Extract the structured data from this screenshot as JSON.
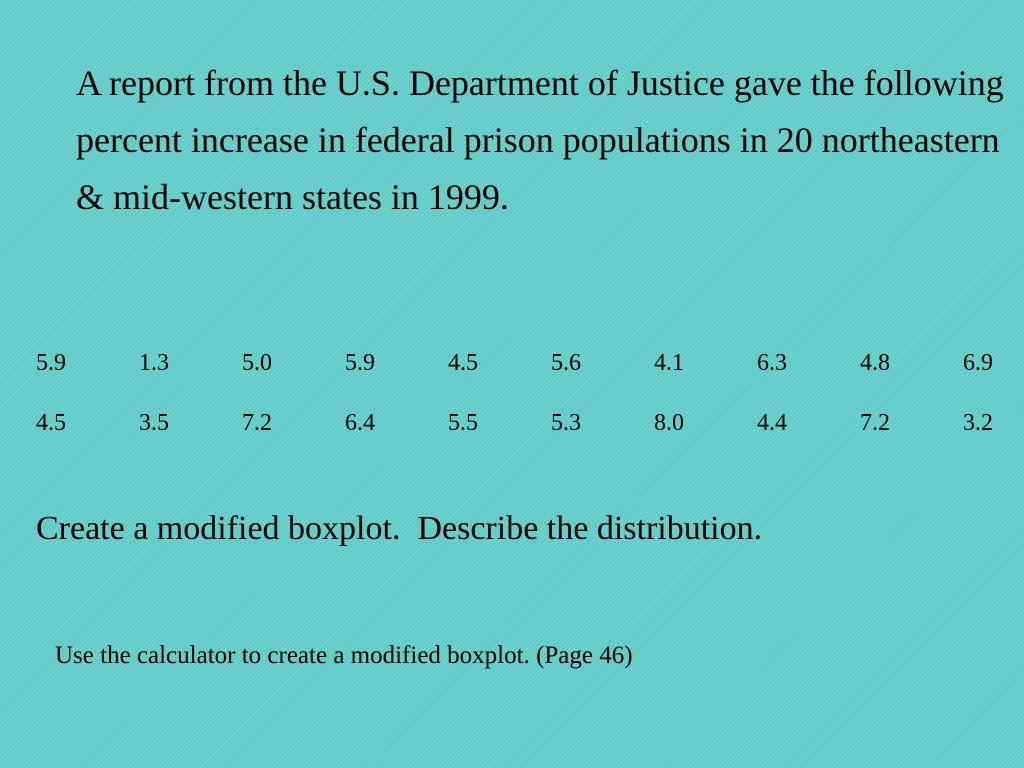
{
  "slide": {
    "background_color": "#5fcbc6",
    "intro_text": "A report from the U.S. Department of Justice gave the following percent increase in federal prison populations in 20 northeastern & mid-western states in 1999.",
    "data_rows": [
      [
        "5.9",
        "1.3",
        "5.0",
        "5.9",
        "4.5",
        "5.6",
        "4.1",
        "6.3",
        "4.8",
        "6.9"
      ],
      [
        "4.5",
        "3.5",
        "7.2",
        "6.4",
        "5.5",
        "5.3",
        "8.0",
        "4.4",
        "7.2",
        "3.2"
      ]
    ],
    "task_text": "Create a modified boxplot.  Describe the distribution.",
    "hint_text": "Use the calculator to create a modified boxplot. (Page 46)"
  }
}
